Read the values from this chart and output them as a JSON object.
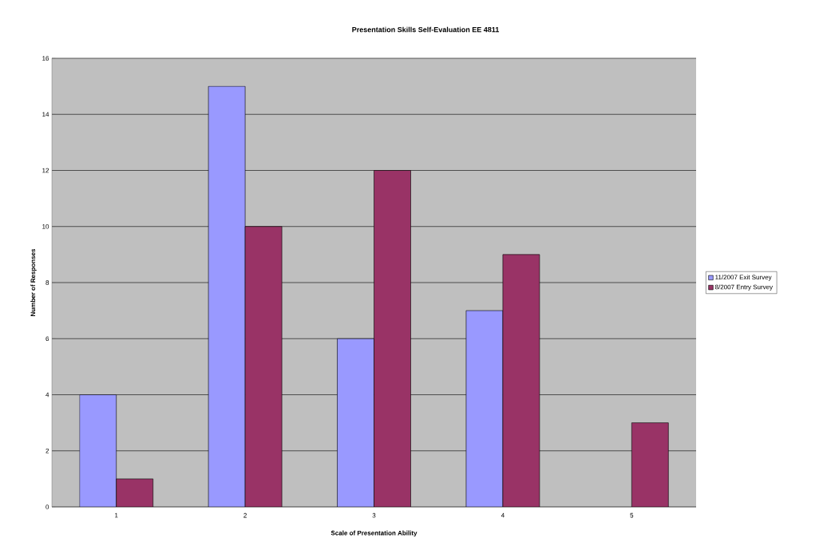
{
  "chart_data": {
    "type": "bar",
    "title": "Presentation Skills Self-Evaluation EE 4811",
    "xlabel": "Scale of Presentation Ability",
    "ylabel": "Number of Responses",
    "categories": [
      "1",
      "2",
      "3",
      "4",
      "5"
    ],
    "series": [
      {
        "name": "11/2007 Exit Survey",
        "color": "#9999ff",
        "values": [
          4,
          15,
          6,
          7,
          null
        ]
      },
      {
        "name": "8/2007 Entry Survey",
        "color": "#993366",
        "values": [
          1,
          10,
          12,
          9,
          3
        ]
      }
    ],
    "ylim": [
      0,
      16
    ],
    "yticks": [
      0,
      2,
      4,
      6,
      8,
      10,
      12,
      14,
      16
    ],
    "grid": "y",
    "legend": "right"
  }
}
